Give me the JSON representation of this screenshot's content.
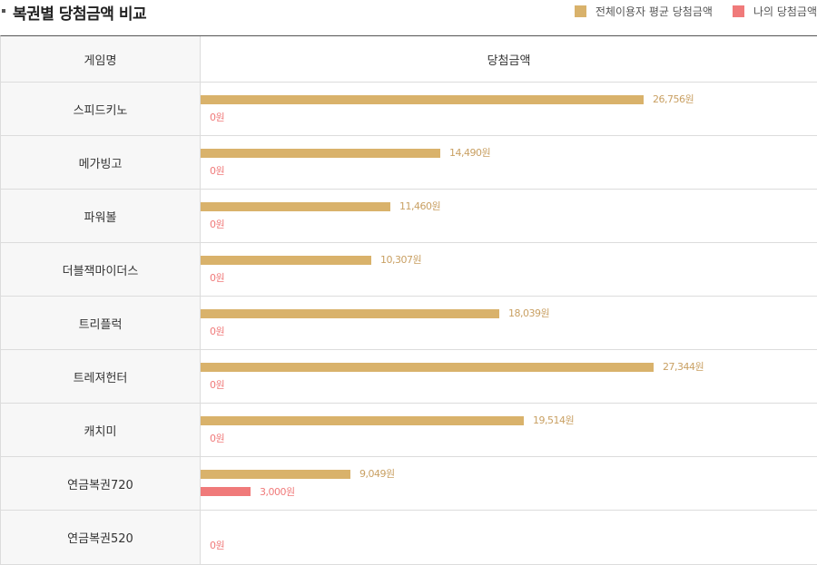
{
  "header": {
    "title": "복권별 당첨금액 비교",
    "legend": [
      {
        "label": "전체이용자 평균 당첨금액",
        "color": "#d9b26b"
      },
      {
        "label": "나의 당첨금액",
        "color": "#f07a7a"
      }
    ]
  },
  "table": {
    "col_name": "게임명",
    "col_amount": "당첨금액"
  },
  "chart_data": {
    "type": "bar",
    "orientation": "horizontal",
    "max_value": 27344,
    "categories": [
      "스피드키노",
      "메가빙고",
      "파워볼",
      "더블잭마이더스",
      "트리플럭",
      "트레져헌터",
      "캐치미",
      "연금복권720",
      "연금복권520"
    ],
    "series": [
      {
        "name": "전체이용자 평균 당첨금액",
        "color": "#d9b26b",
        "values": [
          26756,
          14490,
          11460,
          10307,
          18039,
          27344,
          19514,
          9049,
          null
        ],
        "labels": [
          "26,756원",
          "14,490원",
          "11,460원",
          "10,307원",
          "18,039원",
          "27,344원",
          "19,514원",
          "9,049원",
          ""
        ]
      },
      {
        "name": "나의 당첨금액",
        "color": "#f07a7a",
        "values": [
          0,
          0,
          0,
          0,
          0,
          0,
          0,
          3000,
          0
        ],
        "labels": [
          "0원",
          "0원",
          "0원",
          "0원",
          "0원",
          "0원",
          "0원",
          "3,000원",
          "0원"
        ]
      }
    ]
  }
}
